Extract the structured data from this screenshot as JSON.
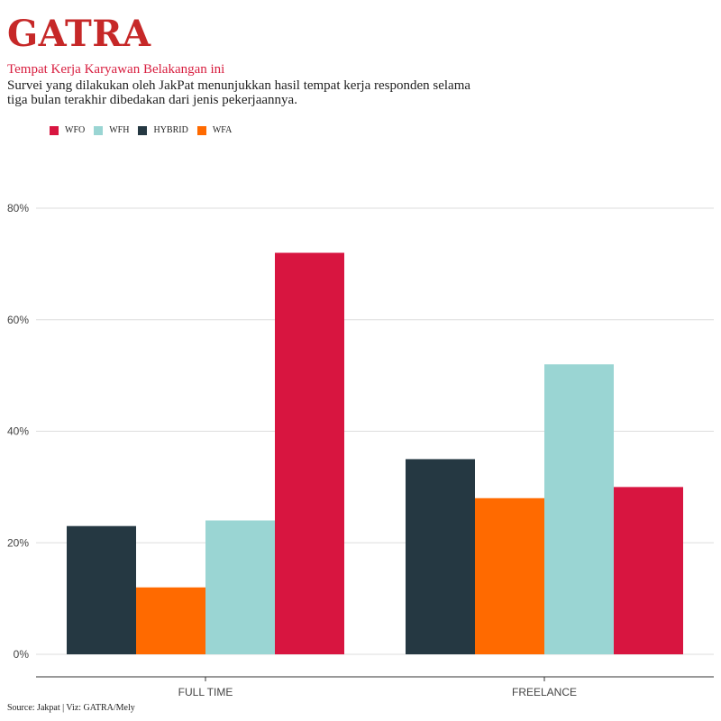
{
  "brand": "GATRA",
  "subtitle": "Tempat Kerja Karyawan Belakangan ini",
  "description": "Survei yang dilakukan oleh JakPat menunjukkan hasil tempat kerja responden selama tiga bulan terakhir dibedakan dari jenis pekerjaannya.",
  "source": "Source: Jakpat | Viz: GATRA/Mely",
  "legend": [
    {
      "label": "WFO",
      "color": "#d81540"
    },
    {
      "label": "WFH",
      "color": "#9ad5d3"
    },
    {
      "label": "HYBRID",
      "color": "#253842"
    },
    {
      "label": "WFA",
      "color": "#ff6a00"
    }
  ],
  "chart_data": {
    "type": "bar",
    "categories": [
      "FULL TIME",
      "FREELANCE"
    ],
    "ylim": [
      0,
      80
    ],
    "yticks": [
      "0%",
      "20%",
      "40%",
      "60%",
      "80%"
    ],
    "ytick_values": [
      0,
      20,
      40,
      60,
      80
    ],
    "grid": true,
    "legend_position": "top-left",
    "groups": [
      {
        "category": "FULL TIME",
        "bars": [
          {
            "series": "HYBRID",
            "value": 23,
            "color": "#253842"
          },
          {
            "series": "WFA",
            "value": 12,
            "color": "#ff6a00"
          },
          {
            "series": "WFH",
            "value": 24,
            "color": "#9ad5d3"
          },
          {
            "series": "WFO",
            "value": 72,
            "color": "#d81540"
          }
        ]
      },
      {
        "category": "FREELANCE",
        "bars": [
          {
            "series": "HYBRID",
            "value": 35,
            "color": "#253842"
          },
          {
            "series": "WFA",
            "value": 28,
            "color": "#ff6a00"
          },
          {
            "series": "WFH",
            "value": 52,
            "color": "#9ad5d3"
          },
          {
            "series": "WFO",
            "value": 30,
            "color": "#d81540"
          }
        ]
      }
    ]
  }
}
